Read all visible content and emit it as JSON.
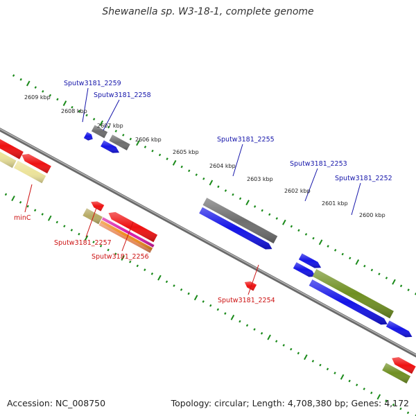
{
  "title": "Shewanella sp. W3-18-1, complete genome",
  "footer": {
    "accession": "Accession: NC_008750",
    "summary": "Topology: circular; Length: 4,708,380 bp; Genes: 4,172"
  },
  "colors": {
    "red": "#ee1111",
    "blue": "#1414e6",
    "gray": "#6e6e6e",
    "olive": "#6f8f22",
    "pale_yellow": "#ece39a",
    "khaki": "#b6aa64",
    "magenta": "#d81aa8",
    "orange": "#f08a1e",
    "backbone": "#8c8c8c",
    "tick": "#1a8a1a",
    "label_top": "#1515aa",
    "label_bottom": "#cc1111"
  },
  "ticks": [
    "2609 kbp",
    "2608 kbp",
    "2607 kbp",
    "2606 kbp",
    "2605 kbp",
    "2604 kbp",
    "2603 kbp",
    "2602 kbp",
    "2601 kbp",
    "2600 kbp"
  ],
  "top_labels": [
    "Sputw3181_2259",
    "Sputw3181_2258",
    "Sputw3181_2255",
    "Sputw3181_2253",
    "Sputw3181_2252"
  ],
  "bottom_labels": [
    "minC",
    "Sputw3181_2257",
    "Sputw3181_2256",
    "Sputw3181_2254"
  ]
}
